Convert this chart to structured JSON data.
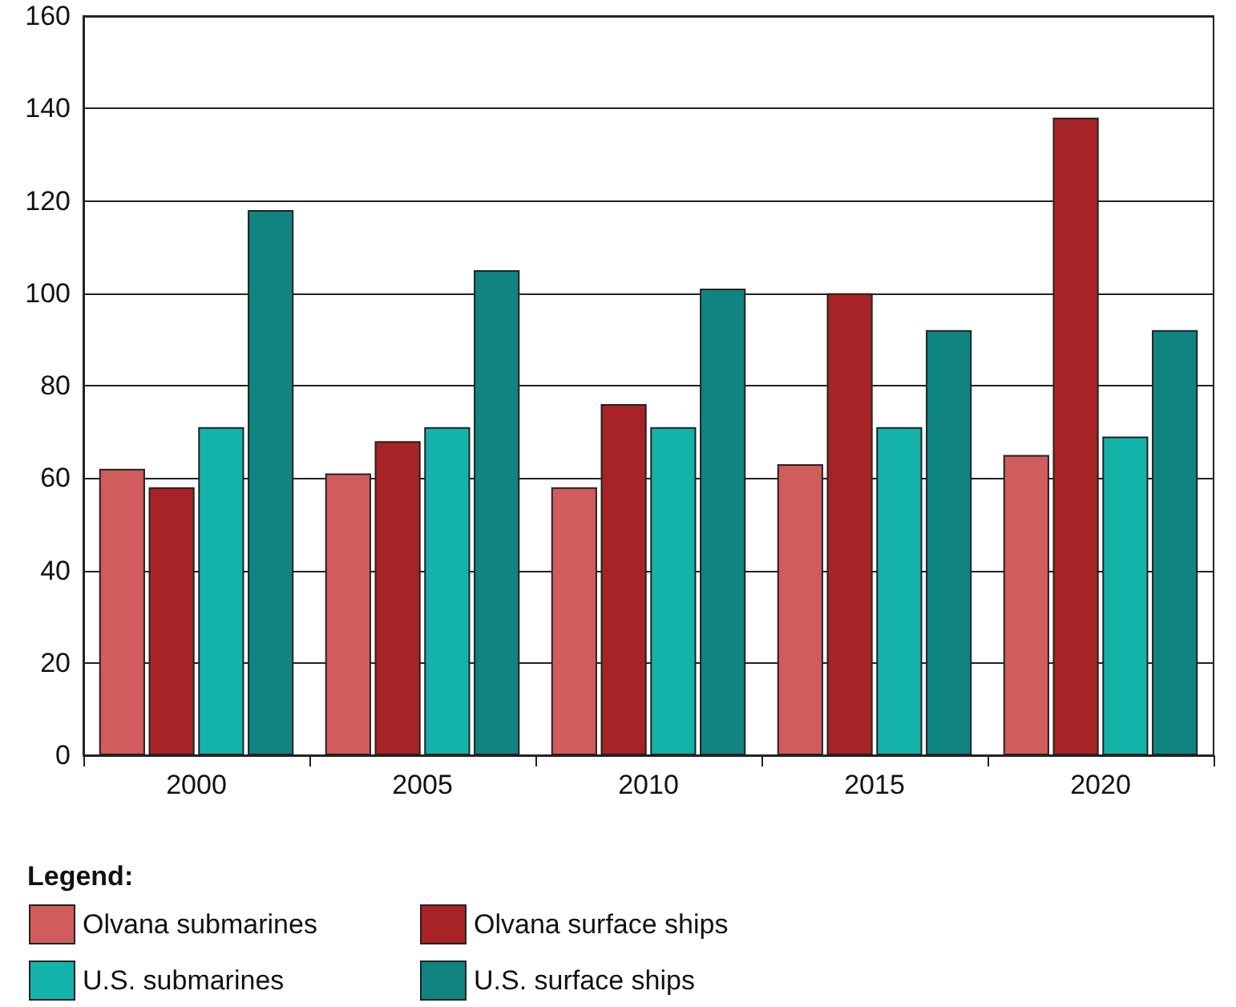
{
  "chart_data": {
    "type": "bar",
    "categories": [
      "2000",
      "2005",
      "2010",
      "2015",
      "2020"
    ],
    "series": [
      {
        "name": "Olvana submarines",
        "color": "#d05c5c",
        "values": [
          62,
          61,
          58,
          63,
          65
        ]
      },
      {
        "name": "Olvana surface ships",
        "color": "#a82325",
        "values": [
          58,
          68,
          76,
          100,
          138
        ]
      },
      {
        "name": "U.S. submarines",
        "color": "#14b3aa",
        "values": [
          71,
          71,
          71,
          71,
          69
        ]
      },
      {
        "name": "U.S. surface ships",
        "color": "#0f8480",
        "values": [
          118,
          105,
          101,
          92,
          92
        ]
      }
    ],
    "ylim": [
      0,
      160
    ],
    "yticks": [
      0,
      20,
      40,
      60,
      80,
      100,
      120,
      140,
      160
    ],
    "grid": "y",
    "legend": "bottom left",
    "legend_title": "Legend:"
  }
}
